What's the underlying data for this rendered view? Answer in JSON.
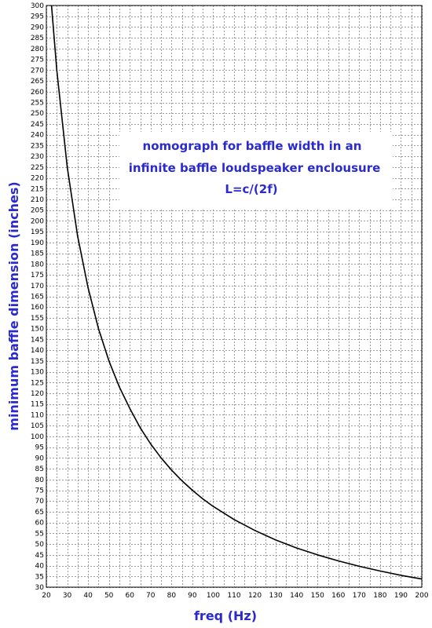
{
  "chart_data": {
    "type": "line",
    "title_lines": [
      "nomograph for baffle width in an",
      "infinite baffle loudspeaker enclousure",
      "L=c/(2f)"
    ],
    "xlabel": "freq (Hz)",
    "ylabel": "minimum baffle dimension (inches)",
    "xlim": [
      20,
      200
    ],
    "ylim": [
      30,
      300
    ],
    "x_ticks": [
      20,
      30,
      40,
      50,
      60,
      70,
      80,
      90,
      100,
      110,
      120,
      130,
      140,
      150,
      160,
      170,
      180,
      190,
      200
    ],
    "y_ticks": [
      30,
      35,
      40,
      45,
      50,
      55,
      60,
      65,
      70,
      75,
      80,
      85,
      90,
      95,
      100,
      105,
      110,
      115,
      120,
      125,
      130,
      135,
      140,
      145,
      150,
      155,
      160,
      165,
      170,
      175,
      180,
      185,
      190,
      195,
      200,
      205,
      210,
      215,
      220,
      225,
      230,
      235,
      240,
      245,
      250,
      255,
      260,
      265,
      270,
      275,
      280,
      285,
      290,
      295,
      300
    ],
    "x_minor_step": 5,
    "grid": true,
    "series": [
      {
        "x": [
          22.5,
          25,
          30,
          35,
          40,
          45,
          50,
          55,
          60,
          65,
          70,
          75,
          80,
          85,
          90,
          95,
          100,
          110,
          120,
          130,
          140,
          150,
          160,
          170,
          180,
          190,
          200
        ],
        "y": [
          300,
          270,
          225,
          193,
          169,
          150,
          135,
          123,
          113,
          104,
          96.5,
          90,
          84.4,
          79.4,
          75,
          71,
          67.5,
          61.4,
          56.3,
          51.9,
          48.2,
          45,
          42.2,
          39.7,
          37.5,
          35.5,
          33.8
        ],
        "color": "#000000"
      }
    ]
  }
}
